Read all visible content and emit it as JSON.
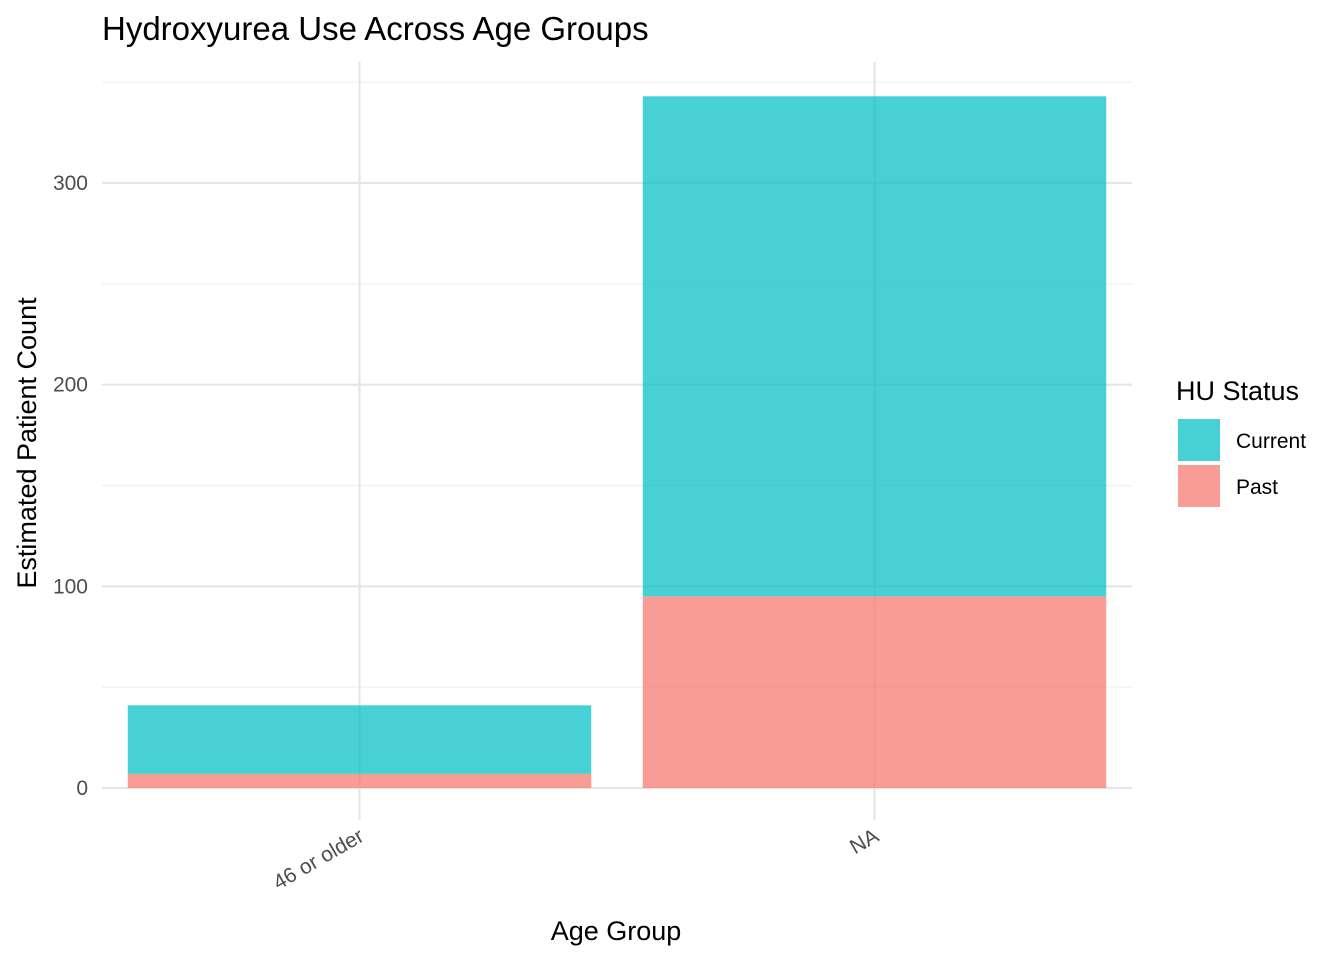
{
  "chart_data": {
    "type": "bar",
    "stacked": true,
    "title": "Hydroxyurea Use Across Age Groups",
    "xlabel": "Age Group",
    "ylabel": "Estimated Patient Count",
    "categories": [
      "46 or older",
      "NA"
    ],
    "series": [
      {
        "name": "Past",
        "values": [
          7,
          95
        ],
        "color": "#F8766D"
      },
      {
        "name": "Current",
        "values": [
          34,
          248
        ],
        "color": "#00BFC4"
      }
    ],
    "ylim": [
      0,
      350
    ],
    "yticks": [
      0,
      100,
      200,
      300
    ],
    "grid": true,
    "legend": {
      "title": "HU Status",
      "position": "right",
      "order": [
        "Current",
        "Past"
      ]
    }
  }
}
